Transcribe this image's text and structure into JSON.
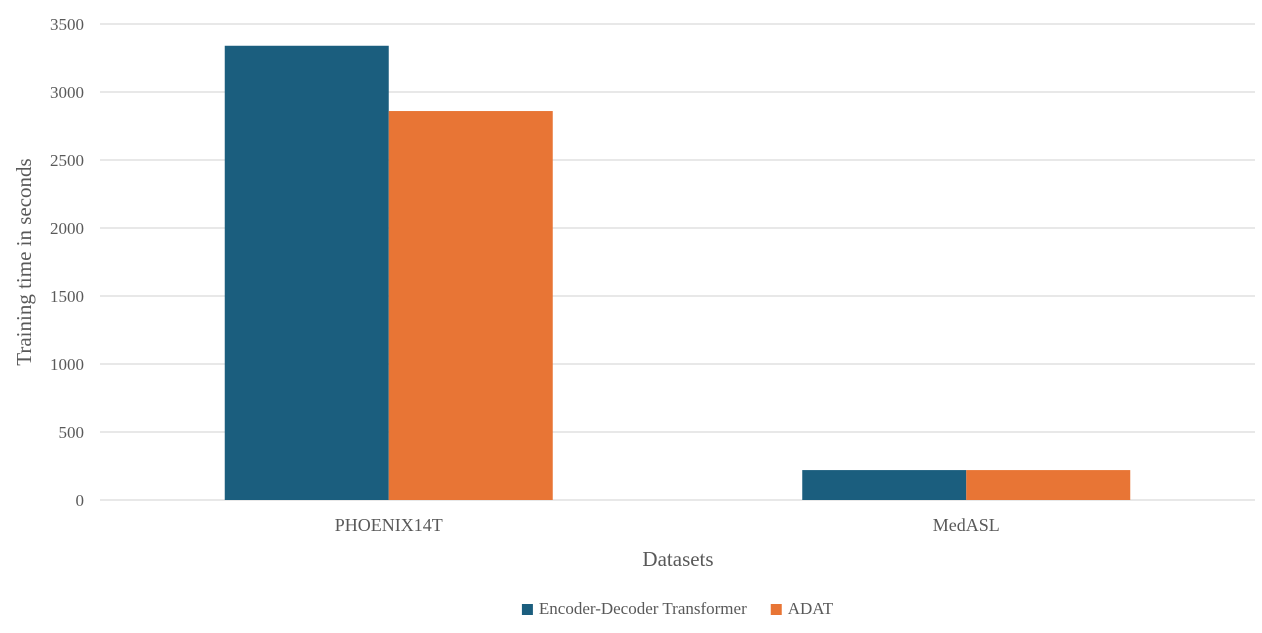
{
  "chart_data": {
    "type": "bar",
    "categories": [
      "PHOENIX14T",
      "MedASL"
    ],
    "series": [
      {
        "name": "Encoder-Decoder Transformer",
        "color": "#1b5e7e",
        "values": [
          3340,
          220
        ]
      },
      {
        "name": "ADAT",
        "color": "#e87535",
        "values": [
          2860,
          220
        ]
      }
    ],
    "xlabel": "Datasets",
    "ylabel": "Training time in seconds",
    "ylim": [
      0,
      3500
    ],
    "yticks": [
      0,
      500,
      1000,
      1500,
      2000,
      2500,
      3000,
      3500
    ],
    "grid": true,
    "legend_position": "bottom"
  }
}
